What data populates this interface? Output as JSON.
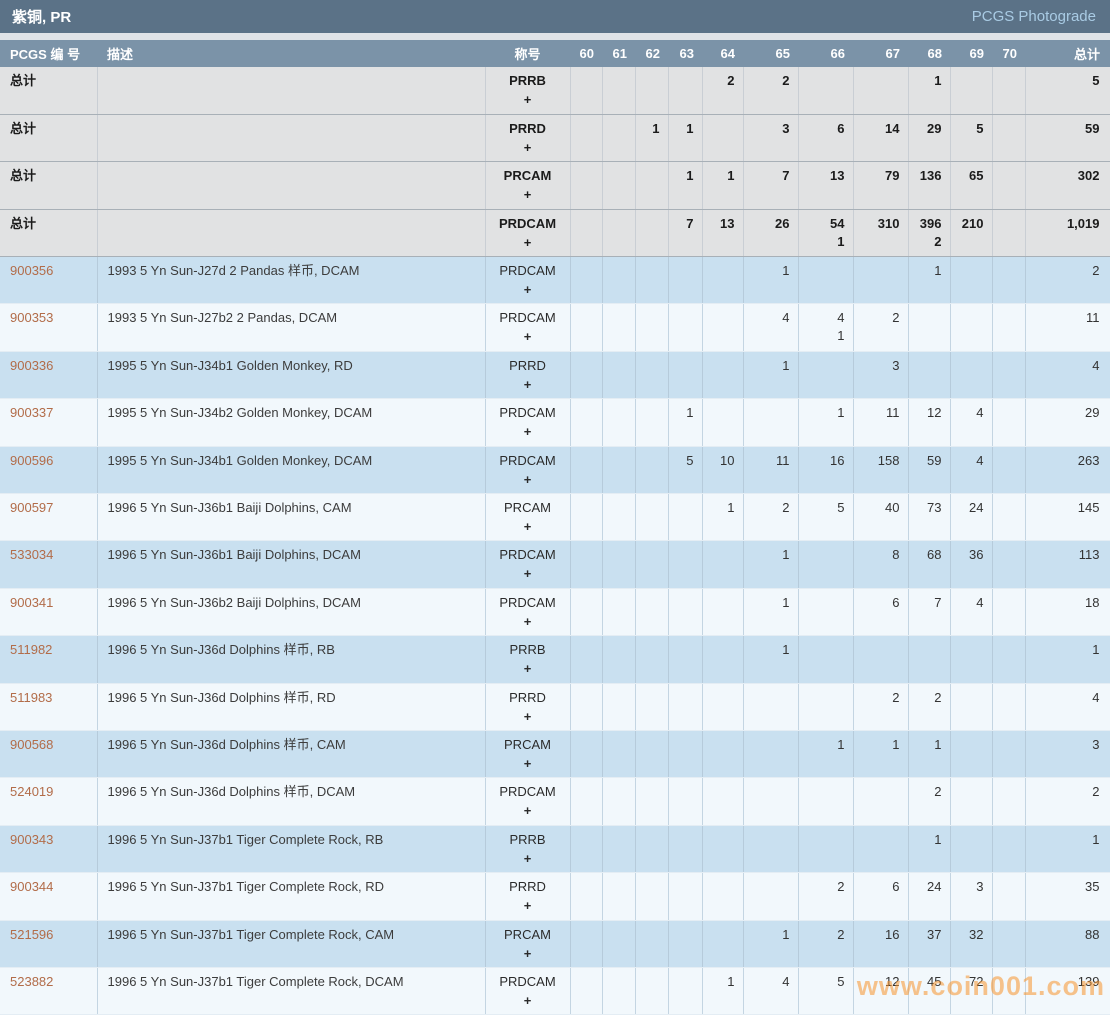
{
  "header": {
    "title": "紫铜, PR",
    "photograde_label": "PCGS Photograde"
  },
  "table": {
    "columns": {
      "pcgs_no": "PCGS 编 号",
      "description": "描述",
      "designation": "称号",
      "grades": [
        "60",
        "61",
        "62",
        "63",
        "64",
        "65",
        "66",
        "67",
        "68",
        "69",
        "70"
      ],
      "total": "总计"
    },
    "summary_label": "总计",
    "plus_label": "+",
    "summary_rows": [
      {
        "designation": "PRRB",
        "grades": [
          "",
          "",
          "",
          "",
          "2",
          "2",
          "",
          "",
          "1",
          "",
          ""
        ],
        "total": "5"
      },
      {
        "designation": "PRRD",
        "grades": [
          "",
          "",
          "1",
          "1",
          "",
          "3",
          "6",
          "14",
          "29",
          "5",
          ""
        ],
        "total": "59"
      },
      {
        "designation": "PRCAM",
        "grades": [
          "",
          "",
          "",
          "1",
          "1",
          "7",
          "13",
          "79",
          "136",
          "65",
          ""
        ],
        "total": "302"
      },
      {
        "designation": "PRDCAM",
        "grades": [
          "",
          "",
          "",
          "7",
          "13",
          "26",
          {
            "count": "54",
            "plus": "1"
          },
          "310",
          {
            "count": "396",
            "plus": "2"
          },
          "210",
          ""
        ],
        "total": "1,019"
      }
    ],
    "rows": [
      {
        "pcgs_no": "900356",
        "description": "1993 5 Yn Sun-J27d 2 Pandas 样币, DCAM",
        "designation": "PRDCAM",
        "grades": [
          "",
          "",
          "",
          "",
          "",
          "1",
          "",
          "",
          "1",
          "",
          ""
        ],
        "total": "2"
      },
      {
        "pcgs_no": "900353",
        "description": "1993 5 Yn Sun-J27b2 2 Pandas, DCAM",
        "designation": "PRDCAM",
        "grades": [
          "",
          "",
          "",
          "",
          "",
          "4",
          {
            "count": "4",
            "plus": "1"
          },
          "2",
          "",
          "",
          ""
        ],
        "total": "11"
      },
      {
        "pcgs_no": "900336",
        "description": "1995 5 Yn Sun-J34b1 Golden Monkey, RD",
        "designation": "PRRD",
        "grades": [
          "",
          "",
          "",
          "",
          "",
          "1",
          "",
          "3",
          "",
          "",
          ""
        ],
        "total": "4"
      },
      {
        "pcgs_no": "900337",
        "description": "1995 5 Yn Sun-J34b2 Golden Monkey, DCAM",
        "designation": "PRDCAM",
        "grades": [
          "",
          "",
          "",
          "1",
          "",
          "",
          "1",
          "11",
          "12",
          "4",
          ""
        ],
        "total": "29"
      },
      {
        "pcgs_no": "900596",
        "description": "1995 5 Yn Sun-J34b1 Golden Monkey, DCAM",
        "designation": "PRDCAM",
        "grades": [
          "",
          "",
          "",
          "5",
          "10",
          "11",
          "16",
          "158",
          "59",
          "4",
          ""
        ],
        "total": "263"
      },
      {
        "pcgs_no": "900597",
        "description": "1996 5 Yn Sun-J36b1 Baiji Dolphins, CAM",
        "designation": "PRCAM",
        "grades": [
          "",
          "",
          "",
          "",
          "1",
          "2",
          "5",
          "40",
          "73",
          "24",
          ""
        ],
        "total": "145"
      },
      {
        "pcgs_no": "533034",
        "description": "1996 5 Yn Sun-J36b1 Baiji Dolphins, DCAM",
        "designation": "PRDCAM",
        "grades": [
          "",
          "",
          "",
          "",
          "",
          "1",
          "",
          "8",
          "68",
          "36",
          ""
        ],
        "total": "113"
      },
      {
        "pcgs_no": "900341",
        "description": "1996 5 Yn Sun-J36b2 Baiji Dolphins, DCAM",
        "designation": "PRDCAM",
        "grades": [
          "",
          "",
          "",
          "",
          "",
          "1",
          "",
          "6",
          "7",
          "4",
          ""
        ],
        "total": "18"
      },
      {
        "pcgs_no": "511982",
        "description": "1996 5 Yn Sun-J36d Dolphins 样币, RB",
        "designation": "PRRB",
        "grades": [
          "",
          "",
          "",
          "",
          "",
          "1",
          "",
          "",
          "",
          "",
          ""
        ],
        "total": "1"
      },
      {
        "pcgs_no": "511983",
        "description": "1996 5 Yn Sun-J36d Dolphins 样币, RD",
        "designation": "PRRD",
        "grades": [
          "",
          "",
          "",
          "",
          "",
          "",
          "",
          "2",
          "2",
          "",
          ""
        ],
        "total": "4"
      },
      {
        "pcgs_no": "900568",
        "description": "1996 5 Yn Sun-J36d Dolphins 样币, CAM",
        "designation": "PRCAM",
        "grades": [
          "",
          "",
          "",
          "",
          "",
          "",
          "1",
          "1",
          "1",
          "",
          ""
        ],
        "total": "3"
      },
      {
        "pcgs_no": "524019",
        "description": "1996 5 Yn Sun-J36d Dolphins 样币, DCAM",
        "designation": "PRDCAM",
        "grades": [
          "",
          "",
          "",
          "",
          "",
          "",
          "",
          "",
          "2",
          "",
          ""
        ],
        "total": "2"
      },
      {
        "pcgs_no": "900343",
        "description": "1996 5 Yn Sun-J37b1 Tiger Complete Rock, RB",
        "designation": "PRRB",
        "grades": [
          "",
          "",
          "",
          "",
          "",
          "",
          "",
          "",
          "1",
          "",
          ""
        ],
        "total": "1"
      },
      {
        "pcgs_no": "900344",
        "description": "1996 5 Yn Sun-J37b1 Tiger Complete Rock, RD",
        "designation": "PRRD",
        "grades": [
          "",
          "",
          "",
          "",
          "",
          "",
          "2",
          "6",
          "24",
          "3",
          ""
        ],
        "total": "35"
      },
      {
        "pcgs_no": "521596",
        "description": "1996 5 Yn Sun-J37b1 Tiger Complete Rock, CAM",
        "designation": "PRCAM",
        "grades": [
          "",
          "",
          "",
          "",
          "",
          "1",
          "2",
          "16",
          "37",
          "32",
          ""
        ],
        "total": "88"
      },
      {
        "pcgs_no": "523882",
        "description": "1996 5 Yn Sun-J37b1 Tiger Complete Rock, DCAM",
        "designation": "PRDCAM",
        "grades": [
          "",
          "",
          "",
          "",
          "1",
          "4",
          "5",
          "12",
          "45",
          "72",
          ""
        ],
        "total": "139"
      }
    ]
  },
  "colors": {
    "title_bar": "#5b7287",
    "header_row": "#7b93a8",
    "summary_row_bg": "#e1e2e3",
    "row_blue": "#c9e0f0",
    "row_light": "#f2f8fc",
    "pcgs_link": "#b26c49",
    "photograde_text": "#a9cbe4",
    "watermark_orange": "#f8942c"
  },
  "watermark": "www.coin001.com"
}
